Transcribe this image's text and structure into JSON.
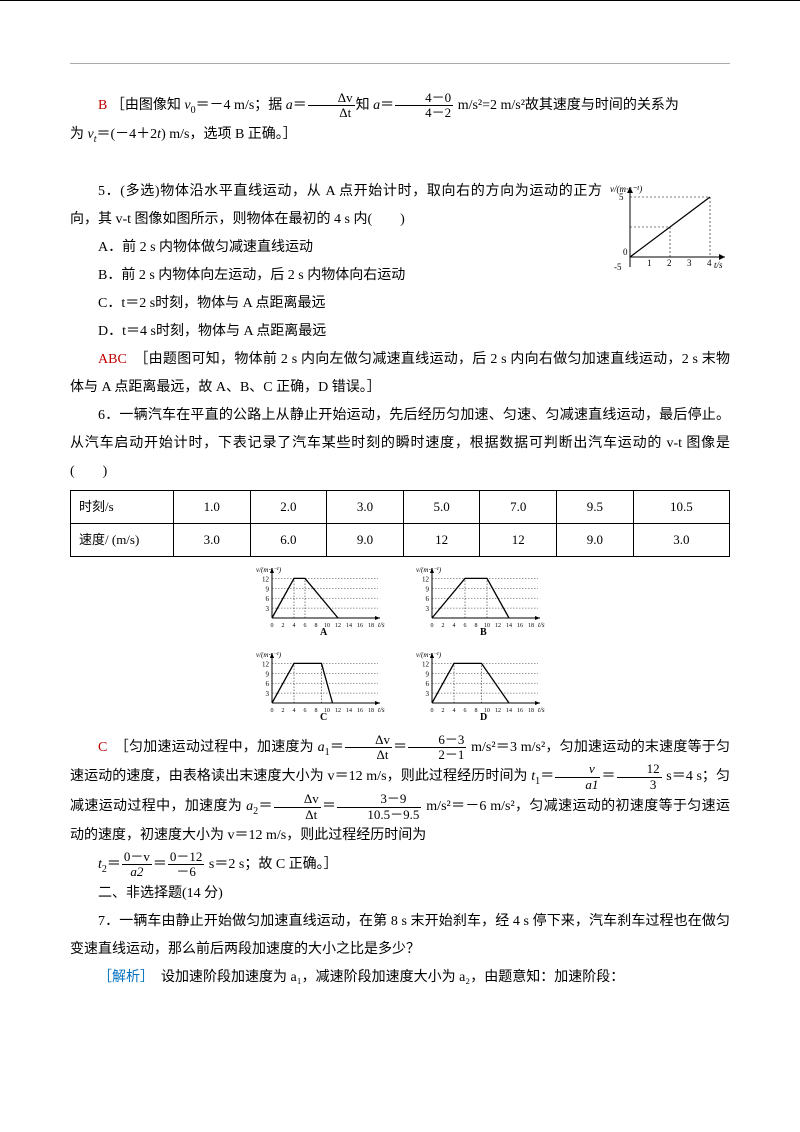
{
  "explB": {
    "letter": "B",
    "text1": "［由图像知 ",
    "formula1": "v",
    "sub1": "0",
    "text2": "＝－4 m/s；据 ",
    "formula2": "a",
    "eq": "＝",
    "dv": "Δv",
    "dt": "Δt",
    "know": "知 ",
    "a2": "a",
    "four_zero": "4－0",
    "four_two": "4－2",
    "text3": " m/s²=2 m/s²故其速度与时间的关系为 ",
    "vt": "v",
    "sub_t": "t",
    "text4": "＝(－4＋2",
    "t": "t",
    "text5": ") m/s，选项 B 正确。］"
  },
  "q5": {
    "stem": "5．(多选)物体沿水平直线运动，从 A 点开始计时，取向右的方向为运动的正方向，其 v­-t 图像如图所示，则物体在最初的 4 s 内(　　)",
    "a": "A．前 2 s 内物体做匀减速直线运动",
    "b": "B．前 2 s 内物体向左运动，后 2 s 内物体向右运动",
    "c": "C．t＝2 s时刻，物体与 A 点距离最远",
    "d": "D．t＝4 s时刻，物体与 A 点距离最远",
    "ans_letter": "ABC",
    "ans": "［由题图可知，物体前 2 s 内向左做匀减速直线运动，后 2 s 内向右做匀加速直线运动，2 s 末物体与 A 点距离最远，故 A、B、C 正确，D 错误。］",
    "chart": {
      "xlabel": "t/s",
      "ylabel": "v/(m·s⁻¹)",
      "xticks": [
        "1",
        "2",
        "3",
        "4"
      ],
      "yticks": [
        "-5",
        "5"
      ],
      "line": [
        [
          0,
          -5
        ],
        [
          4,
          5
        ]
      ],
      "axis_color": "#000",
      "line_color": "#000"
    }
  },
  "q6": {
    "stem": "6．一辆汽车在平直的公路上从静止开始运动，先后经历匀加速、匀速、匀减速直线运动，最后停止。从汽车启动开始计时，下表记录了汽车某些时刻的瞬时速度，根据数据可判断出汽车运动的 v­-t 图像是　(　　)",
    "table": {
      "r1": [
        "时刻/s",
        "1.0",
        "2.0",
        "3.0",
        "5.0",
        "7.0",
        "9.5",
        "10.5"
      ],
      "r2": [
        "速度/ (m/s)",
        "3.0",
        "6.0",
        "9.0",
        "12",
        "12",
        "9.0",
        "3.0"
      ]
    },
    "options": {
      "ylabel": "v/(m·s⁻¹)",
      "xlabel": "t/s",
      "yticks": [
        "12",
        "9",
        "6",
        "3",
        "0"
      ],
      "xticks": [
        "0",
        "2",
        "4",
        "6",
        "8",
        "10",
        "12",
        "14",
        "16",
        "18"
      ],
      "A": {
        "pts": [
          [
            0,
            0
          ],
          [
            4,
            12
          ],
          [
            6,
            12
          ],
          [
            12,
            0
          ]
        ]
      },
      "B": {
        "pts": [
          [
            0,
            0
          ],
          [
            6,
            12
          ],
          [
            10,
            12
          ],
          [
            14,
            0
          ]
        ]
      },
      "C": {
        "pts": [
          [
            0,
            0
          ],
          [
            4,
            12
          ],
          [
            9,
            12
          ],
          [
            11,
            0
          ]
        ]
      },
      "D": {
        "pts": [
          [
            0,
            0
          ],
          [
            4,
            12
          ],
          [
            9,
            12
          ],
          [
            14,
            0
          ]
        ]
      }
    },
    "ans_letter": "C",
    "ans1": "［匀加速运动过程中，加速度为 ",
    "a1": "a",
    "sub1": "1",
    "eq": "＝",
    "dv": "Δv",
    "dt": "Δt",
    "six_three": "6－3",
    "two_one": "2－1",
    "ans2": " m/s²＝3 m/s²，匀加速运动的末速度等于匀速运动的速度，由表格读出末速度大小为 v＝12 m/s，则此过程经历时间为 ",
    "t1": "t",
    "v": "v",
    "a1b": "a1",
    "twelve": "12",
    "three": "3",
    "ans3": " s＝4 s；匀减速运动过程中，加速度为 ",
    "a2": "a",
    "sub2": "2",
    "three_nine": "3－9",
    "ten5_nine5": "10.5－9.5",
    "ans4": " m/s²＝－6 m/s²，匀减速运动的初速度等于匀速运动的速度，初速度大小为 v＝12 m/s，则此过程经历时间为",
    "t2": "t",
    "zero_v": "0－v",
    "zero_12": "0－12",
    "neg6": "－6",
    "ans5": " s＝2 s；故 C 正确。］"
  },
  "sec2": "二、非选择题(14 分)",
  "q7": {
    "stem": "7．一辆车由静止开始做匀加速直线运动，在第 8 s 末开始刹车，经 4 s 停下来，汽车刹车过程也在做匀变速直线运动，那么前后两段加速度的大小之比是多少？",
    "sol_label": "［解析］",
    "sol": "　设加速阶段加速度为 a₁，减速阶段加速度大小为 a₂，由题意知：加速阶段："
  }
}
